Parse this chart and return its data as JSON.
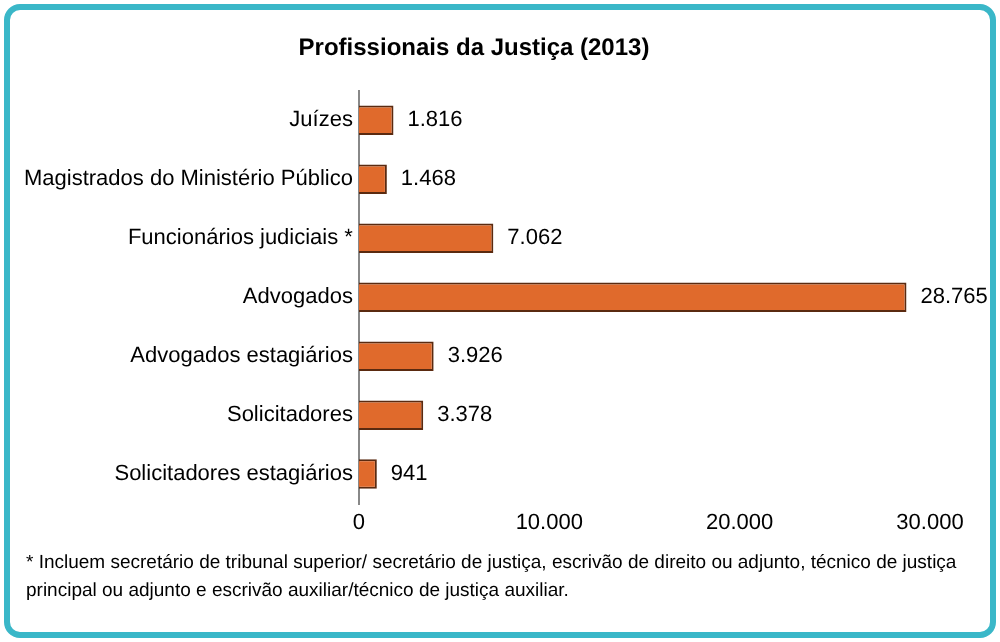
{
  "chart_data": {
    "type": "bar",
    "orientation": "horizontal",
    "title": "Profissionais da Justiça (2013)",
    "categories": [
      "Juízes",
      "Magistrados do Ministério Público",
      "Funcionários judiciais *",
      "Advogados",
      "Advogados estagiários",
      "Solicitadores",
      "Solicitadores estagiários"
    ],
    "values": [
      1816,
      1468,
      7062,
      28765,
      3926,
      3378,
      941
    ],
    "value_labels": [
      "1.816",
      "1.468",
      "7.062",
      "28.765",
      "3.926",
      "3.378",
      "941"
    ],
    "color": "#e06a2c",
    "xlim": [
      0,
      30000
    ],
    "xticks": [
      0,
      {
        "value": 10000,
        "label": "10.000"
      },
      {
        "value": 20000,
        "label": "20.000"
      },
      {
        "value": 30000,
        "label": "30.000"
      }
    ],
    "grid": false,
    "legend": false,
    "annotations": [
      "* Incluem secretário de tribunal superior/ secretário de justiça, escrivão de direito ou adjunto, técnico de justiça principal ou adjunto e escrivão auxiliar/técnico de justiça auxiliar."
    ]
  }
}
